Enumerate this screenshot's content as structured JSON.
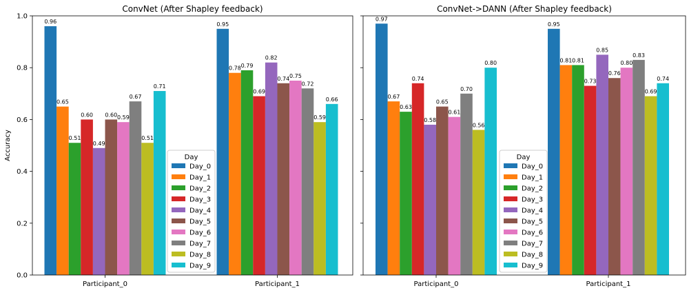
{
  "chart_data": [
    {
      "type": "bar",
      "title": "ConvNet (After Shapley feedback)",
      "xlabel": "",
      "ylabel": "Accuracy",
      "ylim": [
        0,
        1.0
      ],
      "yticks": [
        "0.0",
        "0.2",
        "0.4",
        "0.6",
        "0.8",
        "1.0"
      ],
      "categories": [
        "Participant_0",
        "Participant_1"
      ],
      "legend_title": "Day",
      "legend_placement": "lower-center",
      "grid": false,
      "series": [
        {
          "name": "Day_0",
          "color": "#1f77b4",
          "values": [
            0.96,
            0.95
          ],
          "labels": [
            "0.96",
            "0.95"
          ]
        },
        {
          "name": "Day_1",
          "color": "#ff7f0e",
          "values": [
            0.65,
            0.78
          ],
          "labels": [
            "0.65",
            "0.78"
          ]
        },
        {
          "name": "Day_2",
          "color": "#2ca02c",
          "values": [
            0.51,
            0.79
          ],
          "labels": [
            "0.51",
            "0.79"
          ]
        },
        {
          "name": "Day_3",
          "color": "#d62728",
          "values": [
            0.6,
            0.69
          ],
          "labels": [
            "0.60",
            "0.69"
          ]
        },
        {
          "name": "Day_4",
          "color": "#9467bd",
          "values": [
            0.49,
            0.82
          ],
          "labels": [
            "0.49",
            "0.82"
          ]
        },
        {
          "name": "Day_5",
          "color": "#8c564b",
          "values": [
            0.6,
            0.74
          ],
          "labels": [
            "0.60",
            "0.74"
          ]
        },
        {
          "name": "Day_6",
          "color": "#e377c2",
          "values": [
            0.59,
            0.75
          ],
          "labels": [
            "0.59",
            "0.75"
          ]
        },
        {
          "name": "Day_7",
          "color": "#7f7f7f",
          "values": [
            0.67,
            0.72
          ],
          "labels": [
            "0.67",
            "0.72"
          ]
        },
        {
          "name": "Day_8",
          "color": "#bcbd22",
          "values": [
            0.51,
            0.59
          ],
          "labels": [
            "0.51",
            "0.59"
          ]
        },
        {
          "name": "Day_9",
          "color": "#17becf",
          "values": [
            0.71,
            0.66
          ],
          "labels": [
            "0.71",
            "0.66"
          ]
        }
      ]
    },
    {
      "type": "bar",
      "title": "ConvNet->DANN (After Shapley feedback)",
      "xlabel": "",
      "ylabel": "",
      "ylim": [
        0,
        1.0
      ],
      "yticks": [],
      "categories": [
        "Participant_0",
        "Participant_1"
      ],
      "legend_title": "Day",
      "legend_placement": "lower-center",
      "grid": false,
      "series": [
        {
          "name": "Day_0",
          "color": "#1f77b4",
          "values": [
            0.97,
            0.95
          ],
          "labels": [
            "0.97",
            "0.95"
          ]
        },
        {
          "name": "Day_1",
          "color": "#ff7f0e",
          "values": [
            0.67,
            0.81
          ],
          "labels": [
            "0.67",
            "0.81"
          ]
        },
        {
          "name": "Day_2",
          "color": "#2ca02c",
          "values": [
            0.63,
            0.81
          ],
          "labels": [
            "0.63",
            "0.81"
          ]
        },
        {
          "name": "Day_3",
          "color": "#d62728",
          "values": [
            0.74,
            0.73
          ],
          "labels": [
            "0.74",
            "0.73"
          ]
        },
        {
          "name": "Day_4",
          "color": "#9467bd",
          "values": [
            0.58,
            0.85
          ],
          "labels": [
            "0.58",
            "0.85"
          ]
        },
        {
          "name": "Day_5",
          "color": "#8c564b",
          "values": [
            0.65,
            0.76
          ],
          "labels": [
            "0.65",
            "0.76"
          ]
        },
        {
          "name": "Day_6",
          "color": "#e377c2",
          "values": [
            0.61,
            0.8
          ],
          "labels": [
            "0.61",
            "0.80"
          ]
        },
        {
          "name": "Day_7",
          "color": "#7f7f7f",
          "values": [
            0.7,
            0.83
          ],
          "labels": [
            "0.70",
            "0.83"
          ]
        },
        {
          "name": "Day_8",
          "color": "#bcbd22",
          "values": [
            0.56,
            0.69
          ],
          "labels": [
            "0.56",
            "0.69"
          ]
        },
        {
          "name": "Day_9",
          "color": "#17becf",
          "values": [
            0.8,
            0.74
          ],
          "labels": [
            "0.80",
            "0.74"
          ]
        }
      ]
    }
  ]
}
